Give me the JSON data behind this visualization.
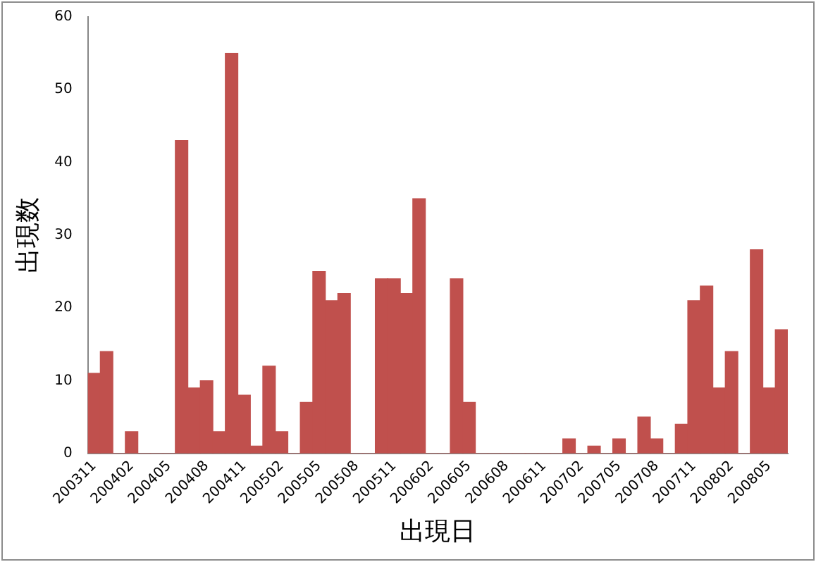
{
  "chart_data": {
    "type": "bar",
    "xlabel": "出現日",
    "ylabel": "出現数",
    "color": "#c0504d",
    "categories": [
      "200311",
      null,
      null,
      "200402",
      null,
      null,
      "200405",
      null,
      null,
      "200408",
      null,
      null,
      "200411",
      null,
      null,
      "200502",
      null,
      null,
      "200505",
      null,
      null,
      "200508",
      null,
      null,
      "200511",
      null,
      null,
      "200602",
      null,
      null,
      "200605",
      null,
      null,
      "200608",
      null,
      null,
      "200611",
      null,
      null,
      "200702",
      null,
      null,
      "200705",
      null,
      null,
      "200708",
      null,
      null,
      "200711",
      null,
      null,
      "200802",
      null,
      null,
      "200805",
      null
    ],
    "values": [
      11,
      14,
      0,
      3,
      0,
      0,
      0,
      43,
      9,
      10,
      3,
      55,
      8,
      1,
      12,
      3,
      0,
      7,
      25,
      21,
      22,
      0,
      0,
      24,
      24,
      22,
      35,
      0,
      0,
      24,
      7,
      0,
      0,
      0,
      0,
      0,
      0,
      0,
      2,
      0,
      1,
      0,
      2,
      0,
      5,
      2,
      0,
      4,
      21,
      23,
      9,
      14,
      0,
      28,
      9,
      17
    ],
    "ylim": [
      0,
      60
    ],
    "yticks": [
      0,
      10,
      20,
      30,
      40,
      50,
      60
    ],
    "grid": false,
    "legend": false
  }
}
